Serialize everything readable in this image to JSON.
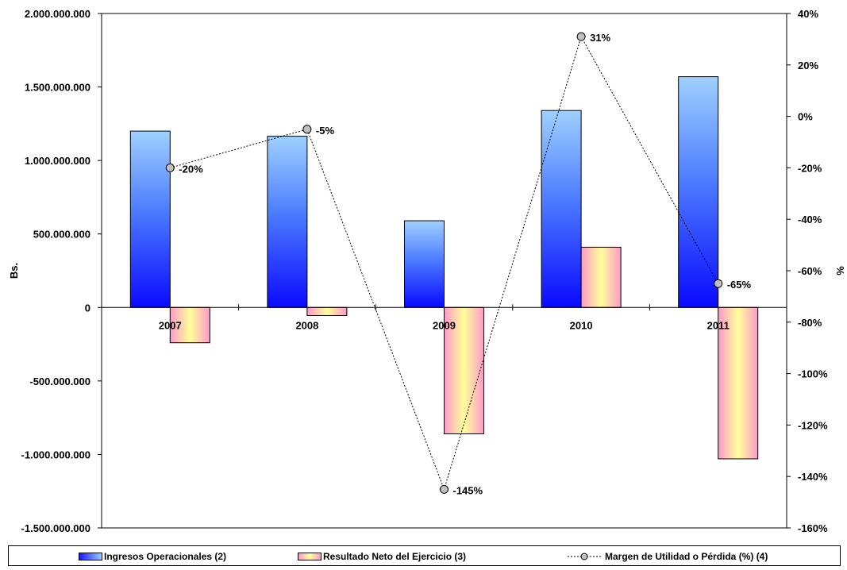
{
  "chart_data": {
    "type": "bar",
    "categories": [
      "2007",
      "2008",
      "2009",
      "2010",
      "2011"
    ],
    "y_left": {
      "label": "Bs.",
      "min": -1500000000,
      "max": 2000000000,
      "step": 500000000,
      "tick_labels": [
        "2.000.000.000",
        "1.500.000.000",
        "1.000.000.000",
        "500.000.000",
        "0",
        "-500.000.000",
        "-1.000.000.000",
        "-1.500.000.000"
      ]
    },
    "y_right": {
      "label": "%",
      "min": -160,
      "max": 40,
      "step": 20,
      "tick_labels": [
        "40%",
        "20%",
        "0%",
        "-20%",
        "-40%",
        "-60%",
        "-80%",
        "-100%",
        "-120%",
        "-140%",
        "-160%"
      ]
    },
    "series": [
      {
        "name": "Ingresos Operacionales (2)",
        "type": "bar",
        "axis": "left",
        "values": [
          1200000000,
          1165000000,
          590000000,
          1340000000,
          1570000000
        ],
        "color": "#1a1aff"
      },
      {
        "name": "Resultado Neto del Ejercicio (3)",
        "type": "bar",
        "axis": "left",
        "values": [
          -240000000,
          -55000000,
          -860000000,
          410000000,
          -1030000000
        ],
        "color": "#ffff99"
      },
      {
        "name": "Margen de Utilidad o Pérdida (%) (4)",
        "type": "line",
        "axis": "right",
        "values": [
          -20,
          -5,
          -145,
          31,
          -65
        ],
        "data_labels": [
          "-20%",
          "-5%",
          "-145%",
          "31%",
          "-65%"
        ],
        "color": "#000000"
      }
    ],
    "grid": false,
    "legend_position": "bottom"
  }
}
